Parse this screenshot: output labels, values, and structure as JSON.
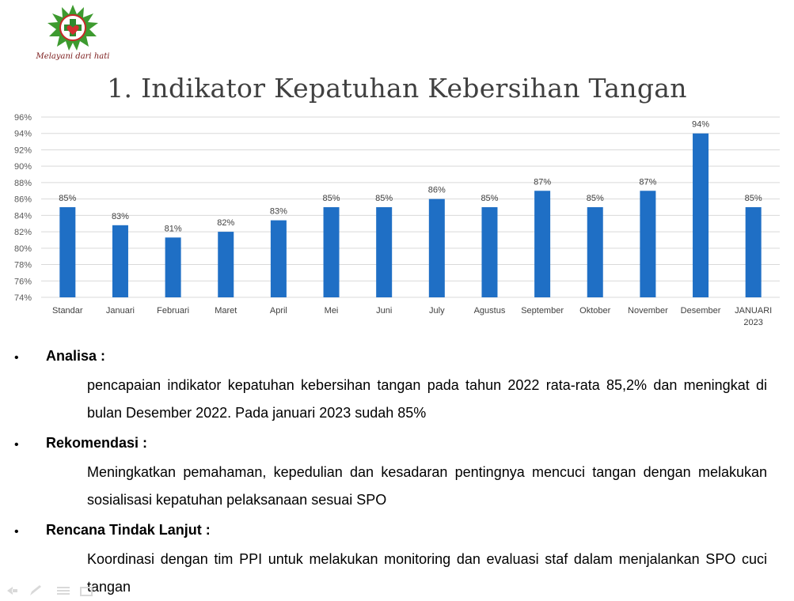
{
  "logo": {
    "motto": "Melayani dari hati"
  },
  "title": "1. Indikator Kepatuhan Kebersihan Tangan",
  "chart_data": {
    "type": "bar",
    "title": "",
    "xlabel": "",
    "ylabel": "",
    "ylim": [
      74,
      96
    ],
    "yticks": [
      "74%",
      "76%",
      "78%",
      "80%",
      "82%",
      "84%",
      "86%",
      "88%",
      "90%",
      "92%",
      "94%",
      "96%"
    ],
    "grid": true,
    "bar_color": "#1F6FC5",
    "categories": [
      "Standar",
      "Januari",
      "Februari",
      "Maret",
      "April",
      "Mei",
      "Juni",
      "July",
      "Agustus",
      "September",
      "Oktober",
      "November",
      "Desember",
      "JANUARI 2023"
    ],
    "values": [
      85,
      82.8,
      81.3,
      82,
      83.4,
      85,
      85,
      86,
      85,
      87,
      85,
      87,
      94,
      85
    ],
    "data_labels": [
      "85%",
      "83%",
      "81%",
      "82%",
      "83%",
      "85%",
      "85%",
      "86%",
      "85%",
      "87%",
      "85%",
      "87%",
      "94%",
      "85%"
    ]
  },
  "sections": [
    {
      "bullet": "•",
      "heading": "Analisa :",
      "body": "pencapaian indikator kepatuhan kebersihan tangan pada tahun 2022 rata-rata 85,2% dan meningkat di bulan Desember 2022. Pada januari 2023 sudah 85%"
    },
    {
      "bullet": "•",
      "heading": "Rekomendasi :",
      "body": "Meningkatkan pemahaman, kepedulian dan kesadaran pentingnya mencuci tangan dengan melakukan sosialisasi kepatuhan pelaksanaan sesuai SPO"
    },
    {
      "bullet": "•",
      "heading": "Rencana Tindak Lanjut :",
      "body": "Koordinasi dengan tim PPI untuk melakukan monitoring dan evaluasi staf dalam menjalankan SPO cuci tangan"
    }
  ],
  "nav": {
    "icons": [
      "arrow-left-icon",
      "pen-icon",
      "menu-icon",
      "slide-icon"
    ],
    "color": "#D9D9D9"
  }
}
